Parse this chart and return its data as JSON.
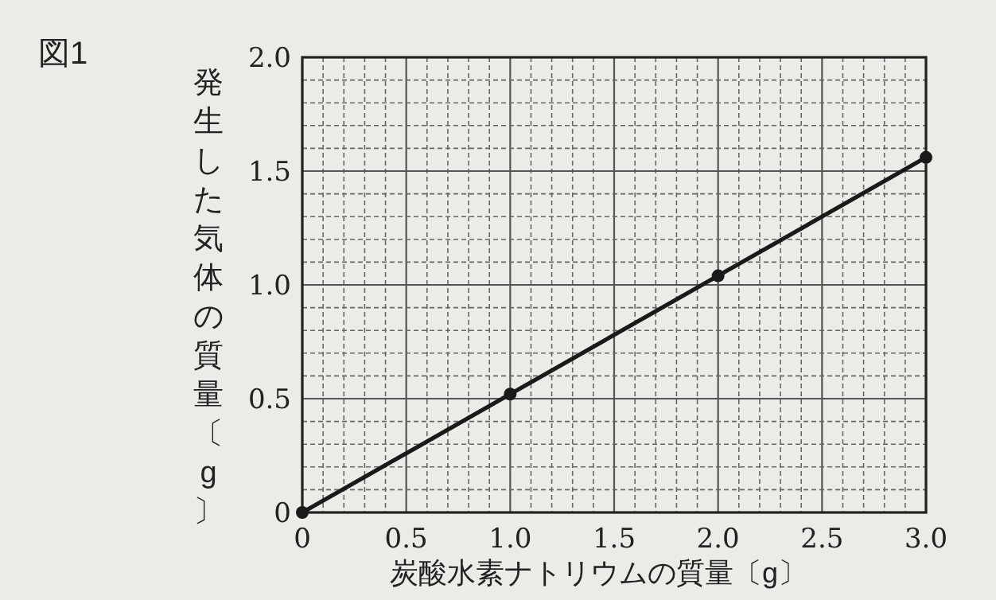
{
  "chart_data": {
    "type": "line",
    "title": "図1",
    "xlabel": "炭酸水素ナトリウムの質量〔g〕",
    "ylabel": "発生した気体の質量〔g〕",
    "x": [
      0,
      1.0,
      2.0,
      3.0
    ],
    "series": [
      {
        "color": "#1a1a1a",
        "values": [
          0,
          0.52,
          1.04,
          1.56
        ]
      }
    ],
    "xlim": [
      0,
      3.0
    ],
    "ylim": [
      0,
      2.0
    ],
    "xticks": [
      0,
      0.5,
      {
        "value": 1.0,
        "label": "1.0"
      },
      1.5,
      {
        "value": 2.0,
        "label": "2.0"
      },
      2.5,
      {
        "value": 3.0,
        "label": "3.0"
      }
    ],
    "yticks": [
      0,
      0.5,
      {
        "value": 1.0,
        "label": "1.0"
      },
      1.5,
      {
        "value": 2.0,
        "label": "2.0"
      }
    ],
    "grid": true,
    "marker": "circle",
    "line_style": "solid"
  }
}
